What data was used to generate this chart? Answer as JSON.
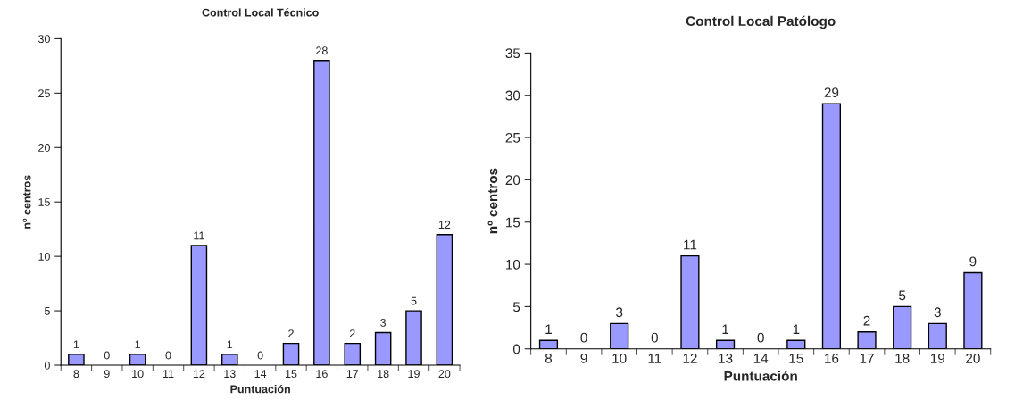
{
  "chart_data": [
    {
      "type": "bar",
      "title": "Control Local Técnico",
      "xlabel": "Puntuación",
      "ylabel": "nº centros",
      "categories": [
        "8",
        "9",
        "10",
        "11",
        "12",
        "13",
        "14",
        "15",
        "16",
        "17",
        "18",
        "19",
        "20"
      ],
      "series": [
        {
          "color": "#9999ff",
          "values": [
            1,
            0,
            1,
            0,
            11,
            1,
            0,
            2,
            28,
            2,
            3,
            5,
            12
          ]
        }
      ],
      "ylim": [
        0,
        30
      ],
      "yticks": [
        0,
        5,
        10,
        15,
        20,
        25,
        30
      ],
      "data_labels": true,
      "grid": false,
      "legend": false
    },
    {
      "type": "bar",
      "title": "Control Local Patólogo",
      "xlabel": "Puntuación",
      "ylabel": "nº centros",
      "categories": [
        "8",
        "9",
        "10",
        "11",
        "12",
        "13",
        "14",
        "15",
        "16",
        "17",
        "18",
        "19",
        "20"
      ],
      "series": [
        {
          "color": "#9999ff",
          "values": [
            1,
            0,
            3,
            0,
            11,
            1,
            0,
            1,
            29,
            2,
            5,
            3,
            9
          ]
        }
      ],
      "ylim": [
        0,
        35
      ],
      "yticks": [
        0,
        5,
        10,
        15,
        20,
        25,
        30,
        35
      ],
      "data_labels": true,
      "grid": false,
      "legend": false
    }
  ]
}
